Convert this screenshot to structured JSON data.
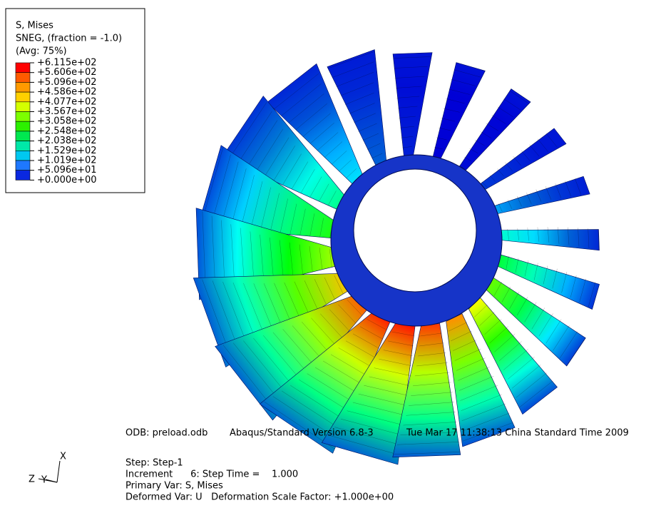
{
  "legend": {
    "title": "S, Mises",
    "subtitle": "SNEG, (fraction = -1.0)",
    "averaging": "(Avg: 75%)",
    "labels": [
      "+6.115e+02",
      "+5.606e+02",
      "+5.096e+02",
      "+4.586e+02",
      "+4.077e+02",
      "+3.567e+02",
      "+3.058e+02",
      "+2.548e+02",
      "+2.038e+02",
      "+1.529e+02",
      "+1.019e+02",
      "+5.096e+01",
      "+0.000e+00"
    ],
    "colors": [
      "#ff0000",
      "#ff5a00",
      "#ff9a00",
      "#ffd000",
      "#d4ff00",
      "#7cff00",
      "#2cf000",
      "#00e850",
      "#00e8a8",
      "#00c8f0",
      "#1e78ff",
      "#0a28e0"
    ]
  },
  "info": {
    "odb": "ODB: preload.odb",
    "version": "Abaqus/Standard Version 6.8-3",
    "date": "Tue Mar 17 11:38:13 China Standard Time 2009",
    "step": "Step: Step-1",
    "increment": "Increment      6: Step Time =    1.000",
    "primary": "Primary Var: S, Mises",
    "deformed": "Deformed Var: U   Deformation Scale Factor: +1.000e+00"
  },
  "triad": {
    "x": "X",
    "y": "Y",
    "z": "Z"
  }
}
